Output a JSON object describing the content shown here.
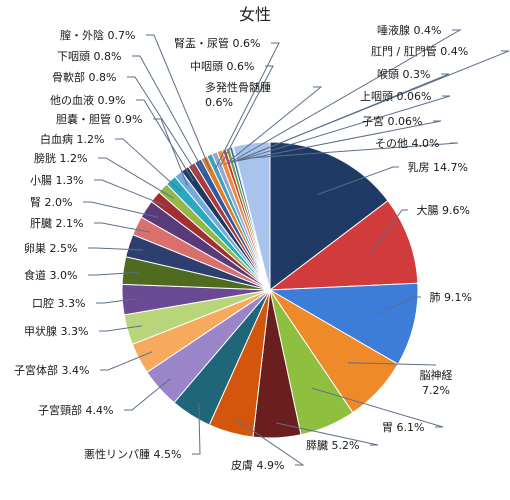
{
  "chart_data": {
    "type": "pie",
    "title": "女性",
    "start": "12 o'clock",
    "direction": "clockwise",
    "slices": [
      {
        "name": "乳房",
        "value": 14.7,
        "display": "14.7%",
        "color": "#1f3a64"
      },
      {
        "name": "大腸",
        "value": 9.6,
        "display": "9.6%",
        "color": "#d13b3b"
      },
      {
        "name": "肺",
        "value": 9.1,
        "display": "9.1%",
        "color": "#3b7dd8"
      },
      {
        "name": "脳神経",
        "value": 7.2,
        "display": "7.2%",
        "color": "#ef8a2a"
      },
      {
        "name": "胃",
        "value": 6.1,
        "display": "6.1%",
        "color": "#8fbf3e"
      },
      {
        "name": "膵臓",
        "value": 5.2,
        "display": "5.2%",
        "color": "#6b1e1e"
      },
      {
        "name": "皮膚",
        "value": 4.9,
        "display": "4.9%",
        "color": "#d4560d"
      },
      {
        "name": "悪性リンパ腫",
        "value": 4.5,
        "display": "4.5%",
        "color": "#1f6678"
      },
      {
        "name": "子宮頸部",
        "value": 4.4,
        "display": "4.4%",
        "color": "#9b85c9"
      },
      {
        "name": "子宮体部",
        "value": 3.4,
        "display": "3.4%",
        "color": "#f7aa5e"
      },
      {
        "name": "甲状腺",
        "value": 3.3,
        "display": "3.3%",
        "color": "#b8d57a"
      },
      {
        "name": "口腔",
        "value": 3.3,
        "display": "3.3%",
        "color": "#6b4a94"
      },
      {
        "name": "食道",
        "value": 3.0,
        "display": "3.0%",
        "color": "#4f6b1f"
      },
      {
        "name": "卵巣",
        "value": 2.5,
        "display": "2.5%",
        "color": "#2d3f6e"
      },
      {
        "name": "肝臓",
        "value": 2.1,
        "display": "2.1%",
        "color": "#d9706e"
      },
      {
        "name": "腎",
        "value": 2.0,
        "display": "2.0%",
        "color": "#5a3b7a"
      },
      {
        "name": "小腸",
        "value": 1.3,
        "display": "1.3%",
        "color": "#a23033"
      },
      {
        "name": "膀胱",
        "value": 1.2,
        "display": "1.2%",
        "color": "#93b847"
      },
      {
        "name": "白血病",
        "value": 1.2,
        "display": "1.2%",
        "color": "#2aa8c0"
      },
      {
        "name": "胆嚢・胆管",
        "value": 0.9,
        "display": "0.9%",
        "color": "#74a9e0"
      },
      {
        "name": "他の血液",
        "value": 0.9,
        "display": "0.9%",
        "color": "#1f3a64"
      },
      {
        "name": "骨軟部",
        "value": 0.8,
        "display": "0.8%",
        "color": "#b03a3a"
      },
      {
        "name": "下咽頭",
        "value": 0.8,
        "display": "0.8%",
        "color": "#2d5aa0"
      },
      {
        "name": "膣・外陰",
        "value": 0.7,
        "display": "0.7%",
        "color": "#e07b2a"
      },
      {
        "name": "腎盂・尿管",
        "value": 0.6,
        "display": "0.6%",
        "color": "#3fa0b8"
      },
      {
        "name": "中咽頭",
        "value": 0.6,
        "display": "0.6%",
        "color": "#8fa8d8"
      },
      {
        "name": "多発性骨髄腫",
        "value": 0.6,
        "display": "0.6%",
        "color": "#f08a3a"
      },
      {
        "name": "唾液腺",
        "value": 0.4,
        "display": "0.4%",
        "color": "#c83a3a"
      },
      {
        "name": "肛門 / 肛門管",
        "value": 0.4,
        "display": "0.4%",
        "color": "#6fa03a"
      },
      {
        "name": "喉頭",
        "value": 0.3,
        "display": "0.3%",
        "color": "#2a6fa8"
      },
      {
        "name": "上咽頭",
        "value": 0.06,
        "display": "0.06%",
        "color": "#e04a4a"
      },
      {
        "name": "子宮",
        "value": 0.06,
        "display": "0.06%",
        "color": "#f2b04a"
      },
      {
        "name": "その他",
        "value": 4.0,
        "display": "4.0%",
        "color": "#a9c4ec"
      }
    ]
  }
}
